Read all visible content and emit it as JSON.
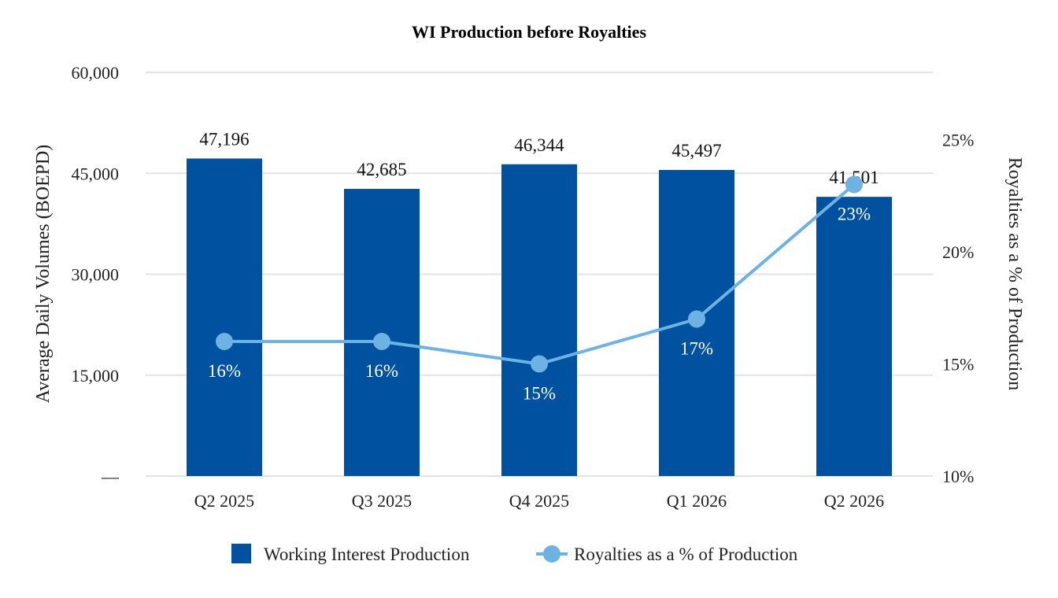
{
  "chart_data": {
    "type": "bar",
    "title": "WI Production before Royalties",
    "categories": [
      "Q2 2025",
      "Q3 2025",
      "Q4 2025",
      "Q1 2026",
      "Q2 2026"
    ],
    "ylabel": "Average Daily Volumes (BOEPD)",
    "y2label": "Royalties as a % of Production",
    "ylim": [
      0,
      60000
    ],
    "y_ticks": [
      "—",
      "15,000",
      "30,000",
      "45,000",
      "60,000"
    ],
    "y_tick_values": [
      0,
      15000,
      30000,
      45000,
      60000
    ],
    "y2lim": [
      10,
      28
    ],
    "y2_ticks": [
      "10%",
      "15%",
      "20%",
      "25%"
    ],
    "y2_tick_values": [
      10,
      15,
      20,
      25
    ],
    "grid": true,
    "legend_position": "bottom",
    "series": [
      {
        "name": "Working Interest Production",
        "type": "bar",
        "axis": "left",
        "color": "#0052a0",
        "values": [
          47196,
          42685,
          46344,
          45497,
          41501
        ],
        "labels": [
          "47,196",
          "42,685",
          "46,344",
          "45,497",
          "41,501"
        ]
      },
      {
        "name": "Royalties as a % of Production",
        "type": "line",
        "axis": "right",
        "color": "#6cb2e2",
        "values": [
          16,
          16,
          15,
          17,
          23
        ],
        "labels": [
          "16%",
          "16%",
          "15%",
          "17%",
          "23%"
        ]
      }
    ]
  }
}
